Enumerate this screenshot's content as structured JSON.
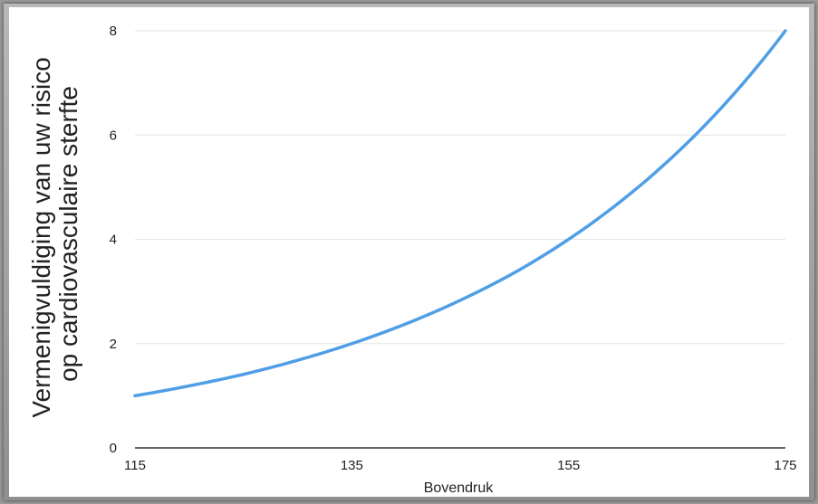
{
  "chart_data": {
    "type": "line",
    "xlabel": "Bovendruk",
    "ylabel_lines": [
      "Vermenigvuldiging van uw risico",
      "op cardiovasculaire sterfte"
    ],
    "x_ticks": [
      115,
      135,
      155,
      175
    ],
    "y_ticks": [
      0,
      2,
      4,
      6,
      8
    ],
    "xlim": [
      115,
      175
    ],
    "ylim": [
      0,
      8
    ],
    "grid": true,
    "line_color": "#4f9ee6",
    "series": [
      {
        "x": [
          115,
          120,
          125,
          130,
          135,
          140,
          145,
          150,
          155,
          160,
          165,
          170,
          175
        ],
        "values": [
          1.0,
          1.19,
          1.41,
          1.68,
          2.0,
          2.38,
          2.83,
          3.36,
          4.0,
          4.76,
          5.66,
          6.73,
          8.0
        ]
      }
    ]
  }
}
